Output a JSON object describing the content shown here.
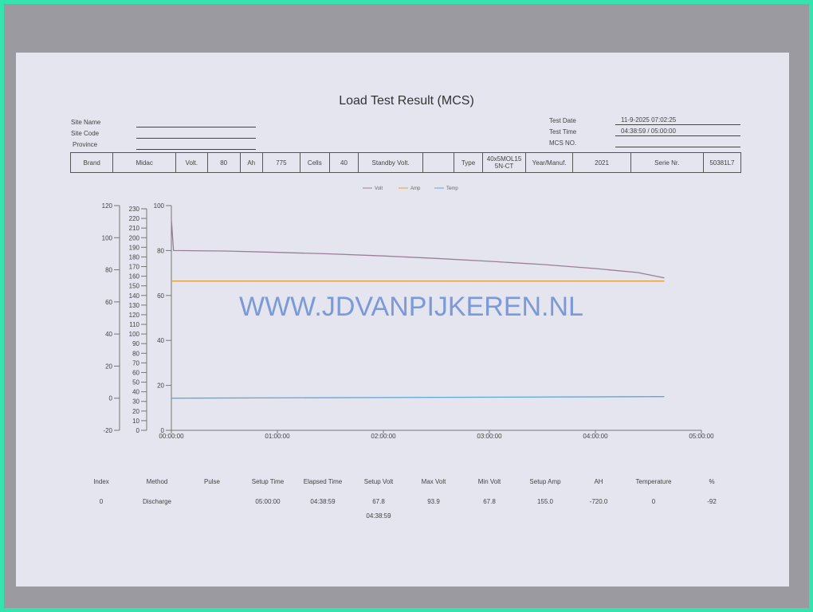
{
  "header": {
    "title": "Load Test Result (MCS)"
  },
  "site": {
    "site_name_label": "Site Name",
    "site_code_label": "Site Code",
    "province_label": "Province"
  },
  "test": {
    "date_label": "Test Date",
    "date_value": "11-9-2025 07:02:25",
    "time_label": "Test Time",
    "time_value": "04:38:59 / 05:00:00",
    "mcs_label": "MCS NO."
  },
  "spec": [
    "Brand",
    "Midac",
    "Volt.",
    "80",
    "Ah",
    "775",
    "Cells",
    "40",
    "Standby Volt.",
    "",
    "Type",
    "40x5MOL15 5N-CT",
    "Year/Manuf.",
    "2021",
    "Serie Nr.",
    "50381L7"
  ],
  "watermark": "WWW.JDVANPIJKEREN.NL",
  "results": {
    "headers": [
      "Index",
      "Method",
      "Pulse",
      "Setup Time",
      "Elapsed Time",
      "Setup Volt",
      "Max Volt",
      "Min Volt",
      "Setup Amp",
      "AH",
      "Temperature",
      "%"
    ],
    "row": [
      "0",
      "Discharge",
      "",
      "05:00:00",
      "04:38:59",
      "67.8",
      "93.9",
      "67.8",
      "155.0",
      "-720.0",
      "0",
      "-92"
    ],
    "extra": "04:38:59"
  },
  "chart_data": {
    "type": "line",
    "x_ticks": [
      "00:00:00",
      "01:00:00",
      "02:00:00",
      "03:00:00",
      "04:00:00",
      "05:00:00"
    ],
    "xlim_hours": [
      0,
      5
    ],
    "axes": [
      {
        "ticks": [
          "120",
          "100",
          "80",
          "60",
          "40",
          "20",
          "0",
          "-20"
        ],
        "range": [
          -20,
          120
        ]
      },
      {
        "ticks": [
          "230",
          "220",
          "210",
          "200",
          "190",
          "180",
          "170",
          "160",
          "150",
          "140",
          "130",
          "120",
          "110",
          "100",
          "90",
          "80",
          "70",
          "60",
          "50",
          "40",
          "30",
          "20",
          "10",
          "0"
        ],
        "range": [
          0,
          230
        ]
      },
      {
        "ticks": [
          "100",
          "80",
          "60",
          "40",
          "20",
          "0"
        ],
        "range": [
          0,
          100
        ]
      }
    ],
    "series": [
      {
        "name": "Volt",
        "color": "#9a7e98",
        "axis": 2,
        "x": [
          0,
          0.02,
          0.5,
          1,
          1.5,
          2,
          2.5,
          3,
          3.5,
          4,
          4.4,
          4.65
        ],
        "y": [
          93.9,
          80,
          79.8,
          79.2,
          78.5,
          77.6,
          76.5,
          75.2,
          73.8,
          72.0,
          70.2,
          67.8
        ]
      },
      {
        "name": "Amp",
        "color": "#e0a040",
        "axis": 1,
        "x": [
          0,
          4.65
        ],
        "y": [
          155,
          155
        ]
      },
      {
        "name": "Temp",
        "color": "#5fa8d8",
        "axis": 0,
        "x": [
          0,
          4.65
        ],
        "y": [
          0,
          1
        ]
      }
    ],
    "legend": "top-center",
    "grid": false
  }
}
